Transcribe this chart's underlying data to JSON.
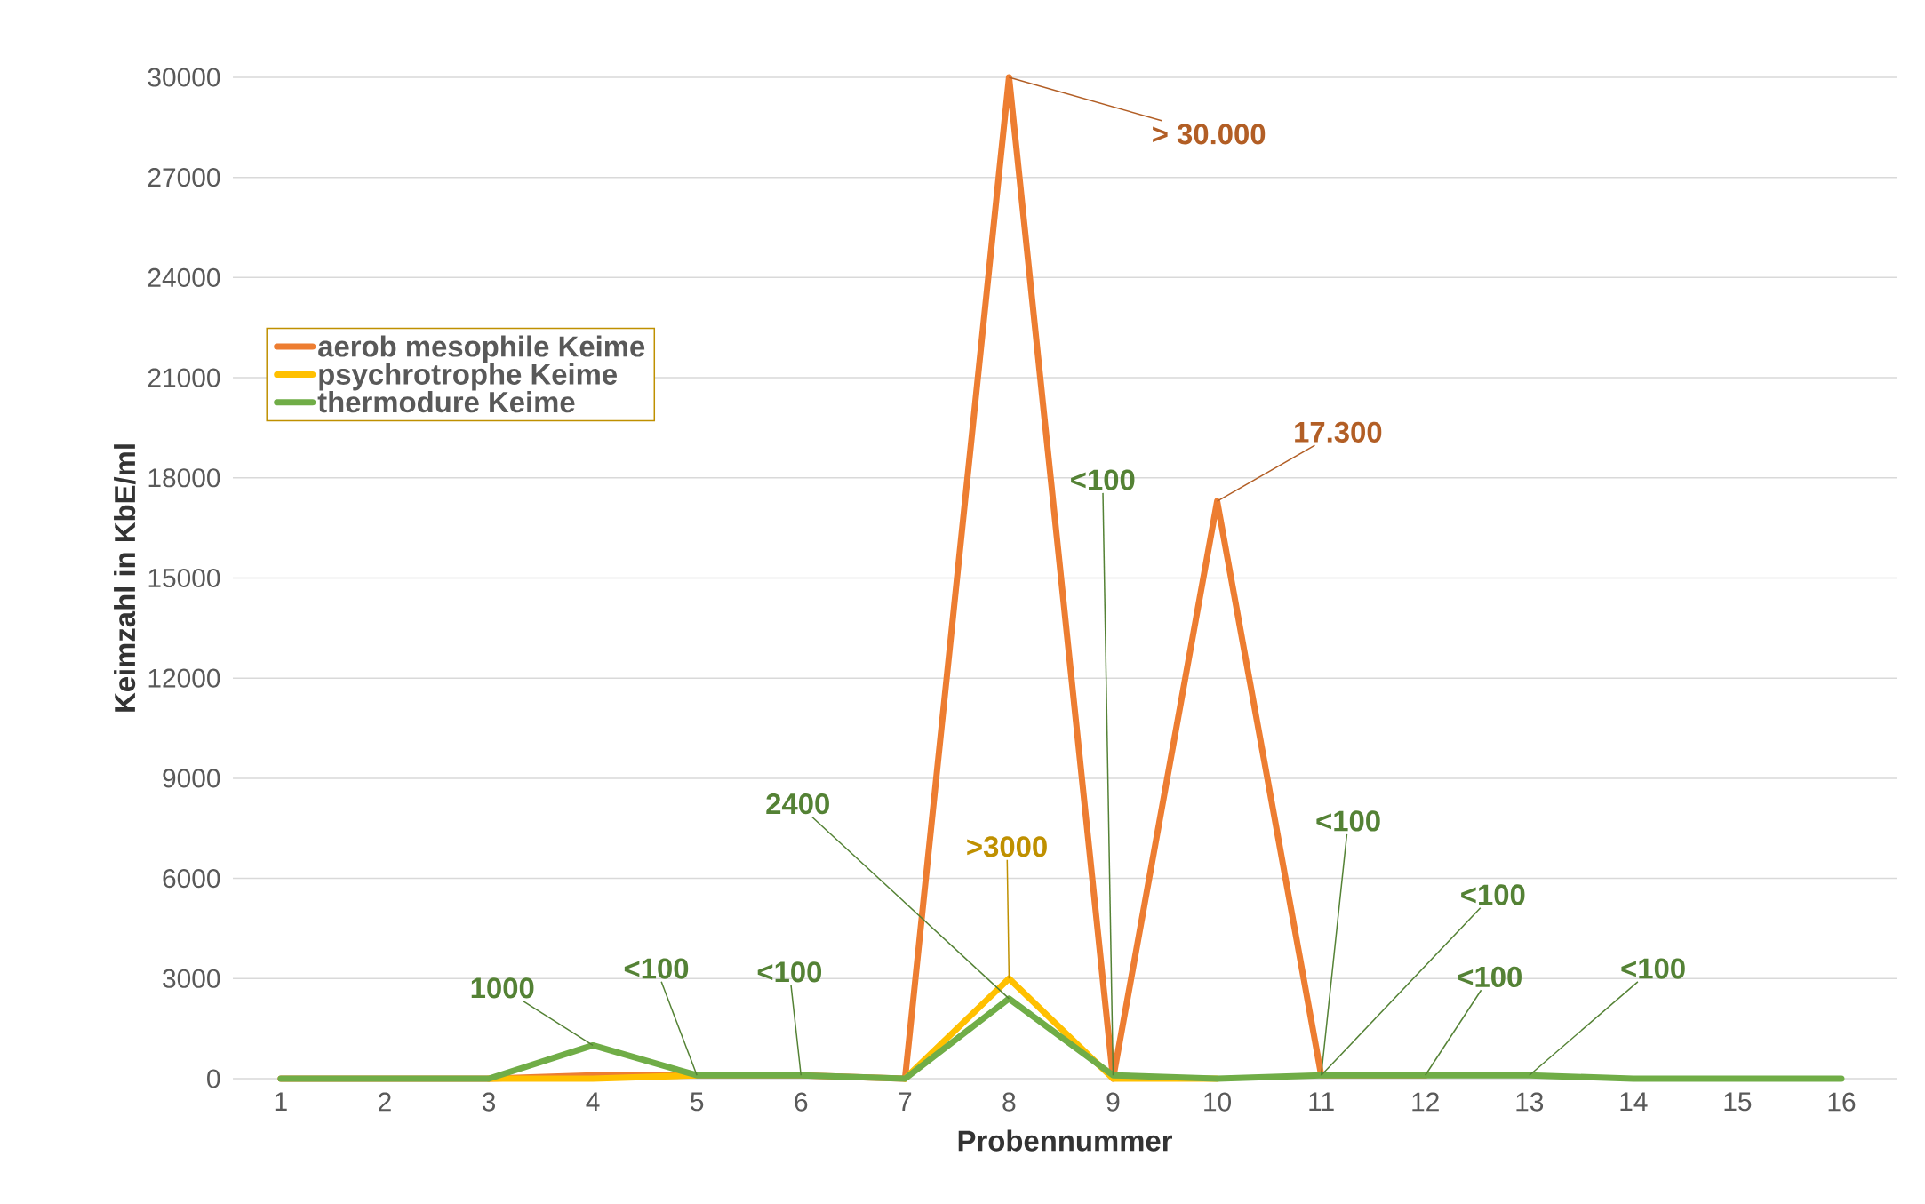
{
  "chart_data": {
    "type": "line",
    "xlabel": "Probennummer",
    "ylabel": "Keimzahl in KbE/ml",
    "categories": [
      "1",
      "2",
      "3",
      "4",
      "5",
      "6",
      "7",
      "8",
      "9",
      "10",
      "11",
      "12",
      "13",
      "14",
      "15",
      "16"
    ],
    "series": [
      {
        "name": "aerob mesophile Keime",
        "color": "#ed7d31",
        "values": [
          0,
          0,
          0,
          100,
          100,
          100,
          0,
          30000,
          0,
          17300,
          100,
          100,
          null,
          null,
          null,
          null
        ]
      },
      {
        "name": "psychrotrophe Keime",
        "color": "#ffc000",
        "values": [
          null,
          null,
          0,
          0,
          100,
          null,
          0,
          3000,
          0,
          0,
          null,
          null,
          null,
          null,
          null,
          null
        ]
      },
      {
        "name": "thermodure Keime",
        "color": "#70ad47",
        "values": [
          0,
          0,
          0,
          1000,
          100,
          100,
          0,
          2400,
          100,
          0,
          100,
          100,
          100,
          0,
          0,
          0
        ]
      }
    ],
    "ylim": [
      0,
      30000
    ],
    "yticks": [
      0,
      3000,
      6000,
      9000,
      12000,
      15000,
      18000,
      21000,
      24000,
      27000,
      30000
    ],
    "grid": "y",
    "legend": "top left",
    "marker": "none",
    "line_style": "solid",
    "annotations": [
      {
        "text": "> 30.000",
        "x": "8",
        "y": 30000
      },
      {
        "text": "17.300",
        "x": "10",
        "y": 17300
      },
      {
        "text": "<100",
        "x": "9",
        "y": 100
      },
      {
        "text": "2400",
        "x": "8",
        "y": 2400
      },
      {
        "text": ">3000",
        "x": "8",
        "y": 3000
      },
      {
        "text": "<100",
        "x": "11",
        "y": 100
      },
      {
        "text": "<100",
        "x": "11",
        "y": 100
      },
      {
        "text": "<100",
        "x": "12",
        "y": 100
      },
      {
        "text": "<100",
        "x": "13",
        "y": 100
      },
      {
        "text": "1000",
        "x": "4",
        "y": 1000
      },
      {
        "text": "<100",
        "x": "5",
        "y": 100
      },
      {
        "text": "<100",
        "x": "6",
        "y": 100
      }
    ]
  }
}
